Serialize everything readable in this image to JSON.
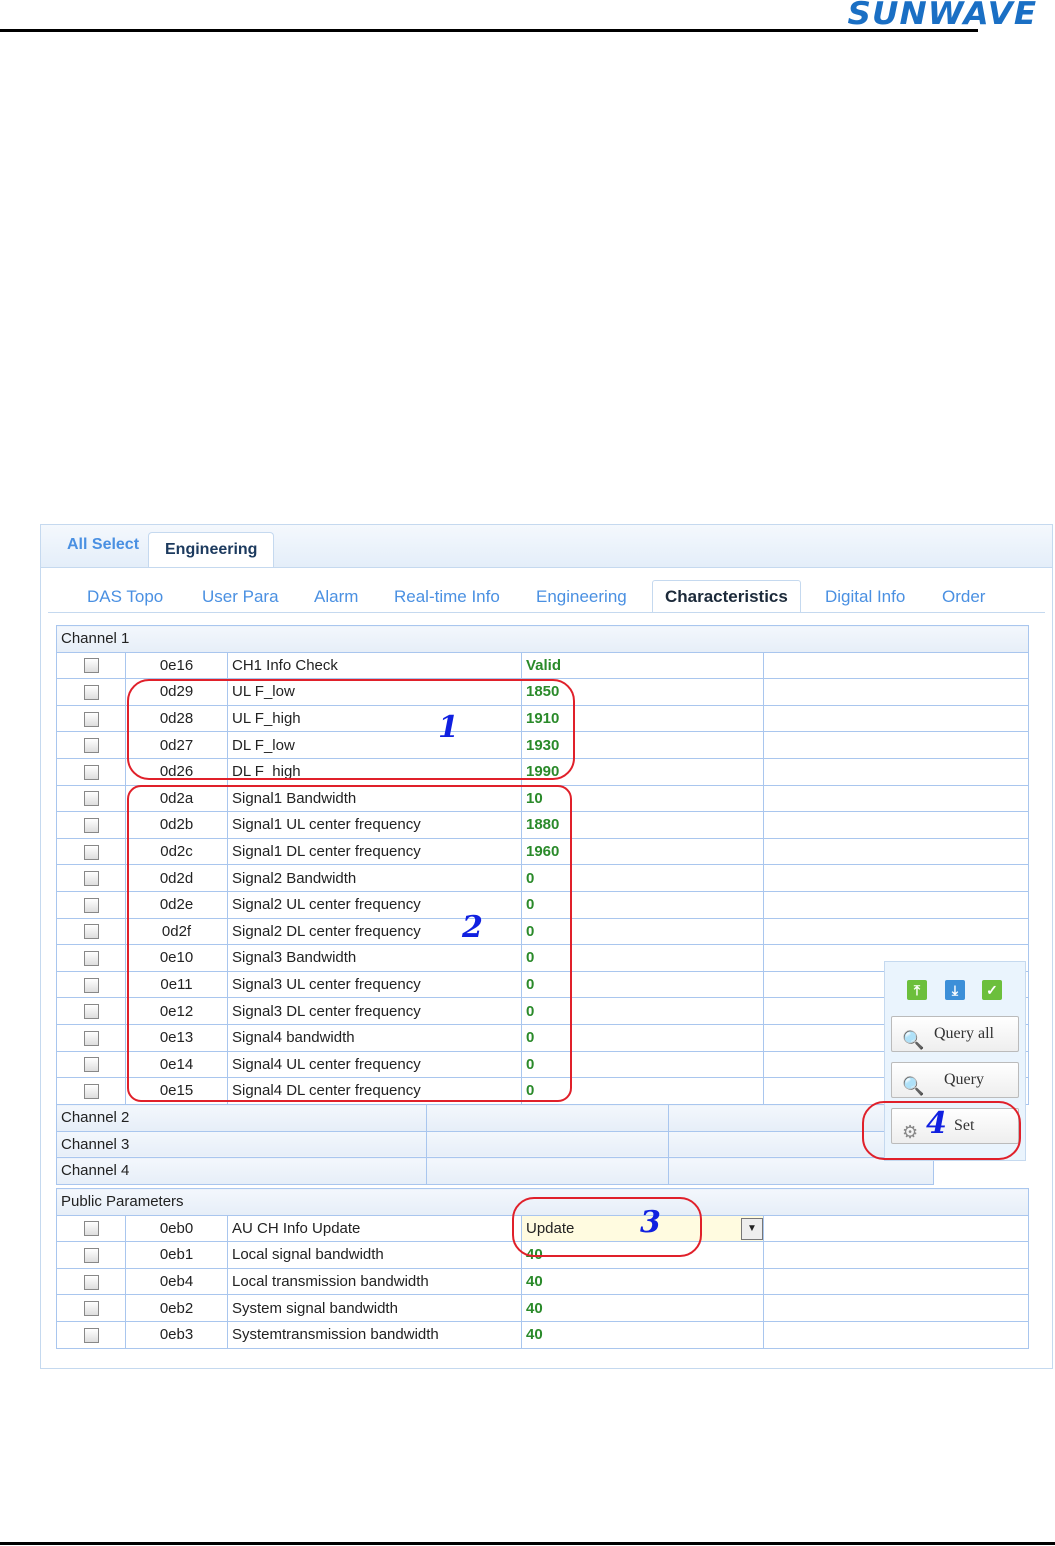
{
  "logo": "SUNWAVE",
  "top_tabs": [
    "All Select",
    "Engineering"
  ],
  "nav_tabs": [
    "DAS Topo",
    "User Para",
    "Alarm",
    "Real-time Info",
    "Engineering",
    "Characteristics",
    "Digital Info",
    "Order"
  ],
  "channel1": {
    "title": "Channel 1",
    "rows": [
      {
        "code": "0e16",
        "name": "CH1 Info Check",
        "value": "Valid"
      },
      {
        "code": "0d29",
        "name": "UL F_low",
        "value": "1850"
      },
      {
        "code": "0d28",
        "name": "UL F_high",
        "value": "1910"
      },
      {
        "code": "0d27",
        "name": "DL F_low",
        "value": "1930"
      },
      {
        "code": "0d26",
        "name": "DL F_high",
        "value": "1990"
      },
      {
        "code": "0d2a",
        "name": "Signal1 Bandwidth",
        "value": "10"
      },
      {
        "code": "0d2b",
        "name": "Signal1 UL center frequency",
        "value": "1880"
      },
      {
        "code": "0d2c",
        "name": "Signal1 DL center frequency",
        "value": "1960"
      },
      {
        "code": "0d2d",
        "name": "Signal2 Bandwidth",
        "value": "0"
      },
      {
        "code": "0d2e",
        "name": "Signal2 UL center frequency",
        "value": "0"
      },
      {
        "code": "0d2f",
        "name": "Signal2 DL center frequency",
        "value": "0"
      },
      {
        "code": "0e10",
        "name": "Signal3 Bandwidth",
        "value": "0"
      },
      {
        "code": "0e11",
        "name": "Signal3 UL center frequency",
        "value": "0"
      },
      {
        "code": "0e12",
        "name": "Signal3 DL center frequency",
        "value": "0"
      },
      {
        "code": "0e13",
        "name": "Signal4 bandwidth",
        "value": "0"
      },
      {
        "code": "0e14",
        "name": "Signal4 UL center frequency",
        "value": "0"
      },
      {
        "code": "0e15",
        "name": "Signal4 DL center frequency",
        "value": "0"
      }
    ]
  },
  "collapsed": [
    "Channel 2",
    "Channel 3",
    "Channel 4"
  ],
  "public": {
    "title": "Public Parameters",
    "rows": [
      {
        "code": "0eb0",
        "name": "AU CH Info Update",
        "value": "Update"
      },
      {
        "code": "0eb1",
        "name": "Local signal bandwidth",
        "value": "40"
      },
      {
        "code": "0eb4",
        "name": "Local transmission bandwidth",
        "value": "40"
      },
      {
        "code": "0eb2",
        "name": "System signal bandwidth",
        "value": "40"
      },
      {
        "code": "0eb3",
        "name": "Systemtransmission bandwidth",
        "value": "40"
      }
    ]
  },
  "side": {
    "query_all": "Query all",
    "query": "Query",
    "set": "Set"
  },
  "annotations": [
    "1",
    "2",
    "3",
    "4"
  ]
}
